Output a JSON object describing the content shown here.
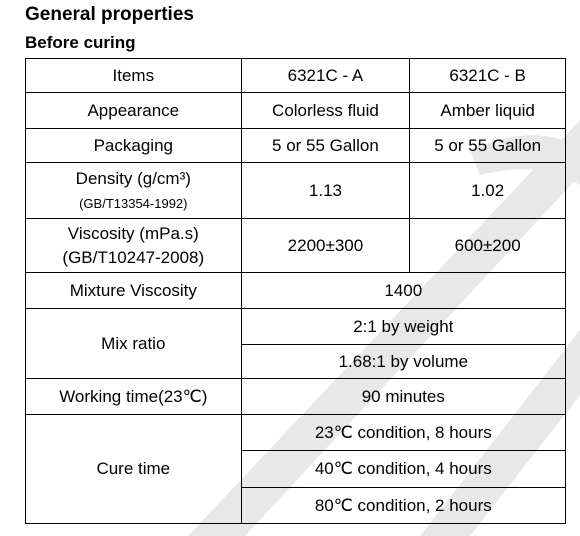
{
  "header": {
    "title": "General properties",
    "subtitle": "Before curing"
  },
  "table": {
    "columns": [
      "Items",
      "6321C - A",
      "6321C - B"
    ],
    "rows": [
      {
        "item": [
          "Appearance"
        ],
        "values": [
          "Colorless fluid",
          "Amber liquid"
        ]
      },
      {
        "item": [
          "Packaging"
        ],
        "values": [
          "5 or 55 Gallon",
          "5 or 55 Gallon"
        ]
      },
      {
        "item": [
          "Density (g/cm³)",
          "(GB/T13354-1992)"
        ],
        "values": [
          "1.13",
          "1.02"
        ]
      },
      {
        "item": [
          "Viscosity (mPa.s)",
          "(GB/T10247-2008)"
        ],
        "values": [
          "2200±300",
          "600±200"
        ]
      },
      {
        "item": [
          "Mixture Viscosity"
        ],
        "values": [
          "1400"
        ]
      },
      {
        "item": [
          "Mix ratio"
        ],
        "values": [
          "2:1 by weight",
          "1.68:1 by volume"
        ]
      },
      {
        "item": [
          "Working time(23℃)"
        ],
        "values": [
          "90 minutes"
        ]
      },
      {
        "item": [
          "Cure time"
        ],
        "values": [
          "23℃ condition, 8 hours",
          "40℃ condition, 4 hours",
          "80℃ condition, 2 hours"
        ]
      }
    ]
  }
}
